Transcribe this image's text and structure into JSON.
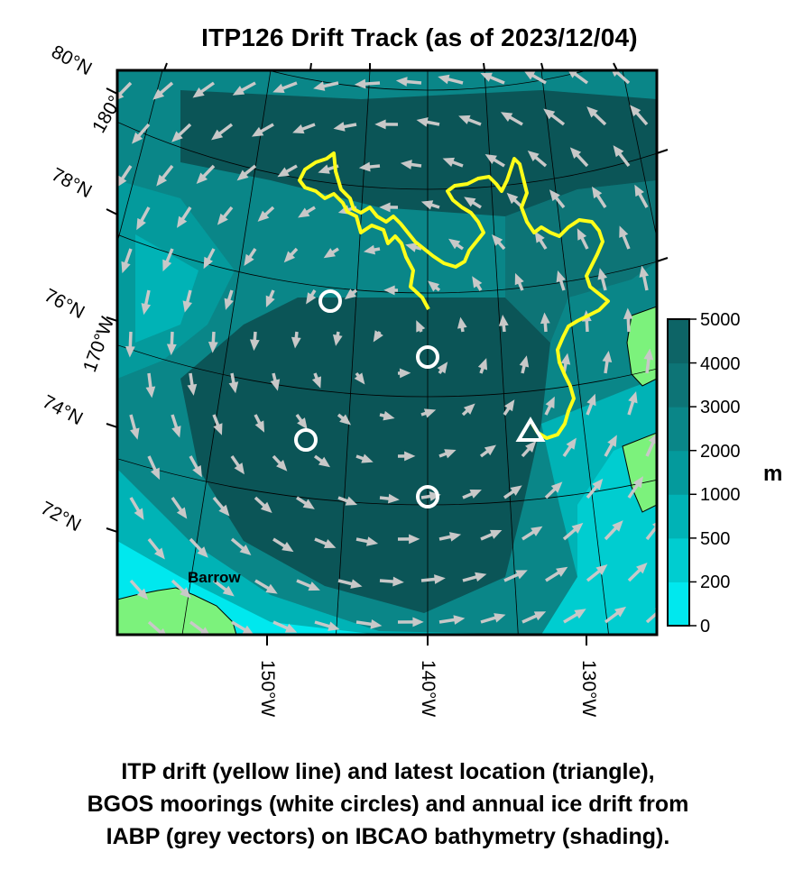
{
  "title": "ITP126 Drift Track (as of 2023/12/04)",
  "lat_labels": [
    "80°N",
    "78°N",
    "76°N",
    "74°N",
    "72°N"
  ],
  "lon_labels_left": [
    "180°",
    "170°W"
  ],
  "lon_labels_bottom": [
    "150°W",
    "140°W",
    "130°W"
  ],
  "place_label": "Barrow",
  "colorbar": {
    "ticks": [
      "5000",
      "4000",
      "3000",
      "2000",
      "1000",
      "500",
      "200",
      "0"
    ],
    "unit": "m",
    "colors": [
      "#00e8ee",
      "#00cdd0",
      "#00b3b6",
      "#049a9c",
      "#0a8688",
      "#0d7476",
      "#0d6466",
      "#0b5557"
    ]
  },
  "caption": [
    "ITP drift (yellow line) and latest location (triangle),",
    "BGOS moorings (white circles) and annual ice drift from",
    "IABP (grey vectors) on IBCAO bathymetry (shading)."
  ],
  "colors": {
    "drift_track": "#ffff19",
    "moorings": "#ffffff",
    "ice_vectors": "#c8c8c8",
    "land": "#7cf27c"
  }
}
